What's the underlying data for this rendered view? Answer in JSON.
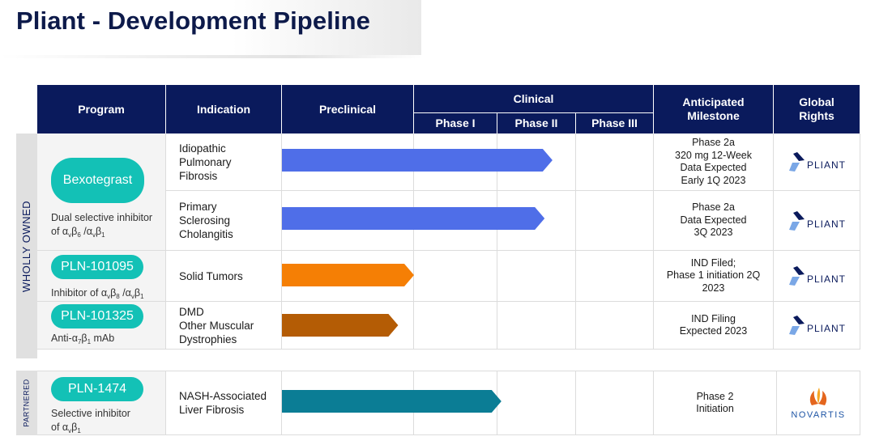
{
  "page_title": "Pliant - Development Pipeline",
  "headers": {
    "program": "Program",
    "indication": "Indication",
    "preclinical": "Preclinical",
    "clinical": "Clinical",
    "phase1": "Phase I",
    "phase2": "Phase II",
    "phase3": "Phase III",
    "milestone": "Anticipated Milestone",
    "rights": "Global Rights"
  },
  "groups": {
    "wholly_owned": "WHOLLY OWNED",
    "partnered": "PARTNERED"
  },
  "programs": [
    {
      "name": "Bexotegrast",
      "desc_html": "Dual selective inhibitor<br>of α<sub>v</sub>β<sub>6</sub> /α<sub>v</sub>β<sub>1</sub>"
    },
    {
      "name": "PLN-101095",
      "desc_html": "Inhibitor of α<sub>v</sub>β<sub>8</sub> /α<sub>v</sub>β<sub>1</sub>"
    },
    {
      "name": "PLN-101325",
      "desc_html": "Anti-α<sub>7</sub>β<sub>1</sub> mAb"
    },
    {
      "name": "PLN-1474",
      "desc_html": "Selective inhibitor<br>of α<sub>v</sub>β<sub>1</sub>"
    }
  ],
  "rows": [
    {
      "indication_html": "Idiopathic<br>Pulmonary<br>Fibrosis",
      "milestone_html": "Phase 2a<br>320 mg 12-Week<br>Data Expected<br>Early 1Q 2023",
      "progress_phase": 1.7,
      "color": "#4f6ee8",
      "rights": "PLIANT"
    },
    {
      "indication_html": "Primary<br>Sclerosing<br>Cholangitis",
      "milestone_html": "Phase 2a<br>Data Expected<br>3Q 2023",
      "progress_phase": 1.6,
      "color": "#4f6ee8",
      "rights": "PLIANT"
    },
    {
      "indication_html": "Solid Tumors",
      "milestone_html": "IND Filed;<br>Phase 1 initiation 2Q<br>2023",
      "progress_phase": 0.0,
      "color": "#f57f05",
      "rights": "PLIANT"
    },
    {
      "indication_html": "DMD<br>Other Muscular<br>Dystrophies",
      "milestone_html": "IND Filing<br>Expected 2023",
      "progress_phase": -0.12,
      "color": "#b45c05",
      "rights": "PLIANT"
    },
    {
      "indication_html": "NASH-Associated<br>Liver Fibrosis",
      "milestone_html": "Phase 2<br>Initiation",
      "progress_phase": 1.05,
      "color": "#0b7d95",
      "rights": "NOVARTIS"
    }
  ]
}
